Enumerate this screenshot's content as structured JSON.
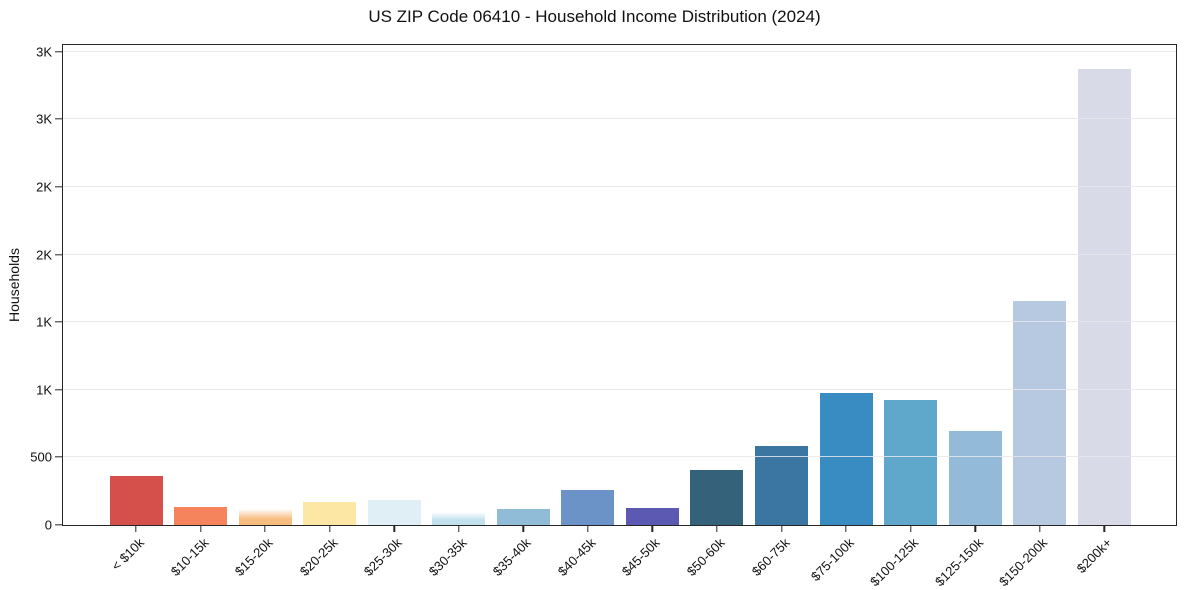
{
  "title": "US ZIP Code 06410 - Household Income Distribution (2024)",
  "axes": {
    "ylabel": "Households"
  },
  "chart_data": {
    "type": "bar",
    "title": "US ZIP Code 06410 - Household Income Distribution (2024)",
    "xlabel": "",
    "ylabel": "Households",
    "ylim": [
      0,
      3550
    ],
    "grid": true,
    "legend": "none",
    "categories": [
      "< $10k",
      "$10-15k",
      "$15-20k",
      "$20-25k",
      "$25-30k",
      "$30-35k",
      "$35-40k",
      "$40-45k",
      "$45-50k",
      "$50-60k",
      "$60-75k",
      "$75-100k",
      "$100-125k",
      "$125-150k",
      "$150-200k",
      "$200k+"
    ],
    "values": [
      365,
      135,
      120,
      172,
      185,
      98,
      118,
      262,
      125,
      407,
      585,
      977,
      928,
      692,
      1657,
      3371
    ],
    "bar_colors": [
      "#d5504b",
      "#f5845c",
      "#f7bd80",
      "#fce8a4",
      "#e0eff6",
      "#c2e1ed",
      "#90bcd8",
      "#6b93c7",
      "#5c59b2",
      "#34627b",
      "#3a76a1",
      "#398cc1",
      "#60a7cc",
      "#93bad9",
      "#b7c9e0",
      "#d9dae8"
    ],
    "soft_top_bars": [
      "$15-20k",
      "$30-35k"
    ],
    "yticks": [
      {
        "value": 0,
        "label": "0"
      },
      {
        "value": 500,
        "label": "500"
      },
      {
        "value": 1000,
        "label": "1K"
      },
      {
        "value": 1500,
        "label": "1K"
      },
      {
        "value": 2000,
        "label": "2K"
      },
      {
        "value": 2500,
        "label": "2K"
      },
      {
        "value": 3000,
        "label": "3K"
      },
      {
        "value": 3500,
        "label": "3K"
      }
    ],
    "grid_color": "#e6e6ec",
    "spine_color": "#262626",
    "background_color": "#ffffff"
  }
}
